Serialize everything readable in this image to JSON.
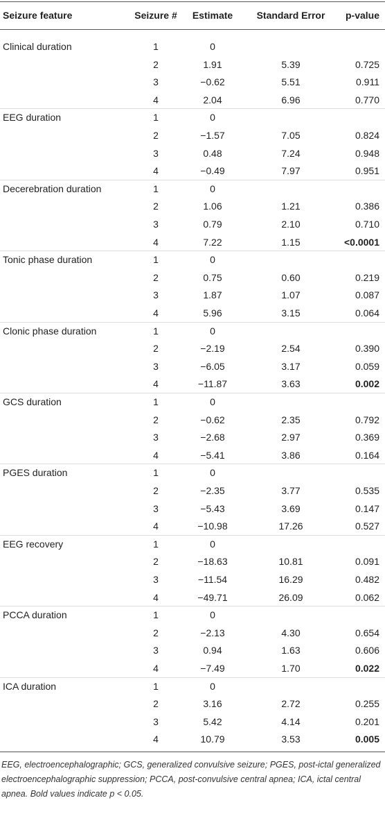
{
  "header": {
    "feature": "Seizure feature",
    "seizure": "Seizure #",
    "estimate": "Estimate",
    "se": "Standard Error",
    "p": "p-value"
  },
  "groups": [
    {
      "feature": "Clinical duration",
      "rows": [
        {
          "seizure": "1",
          "estimate": "0"
        },
        {
          "seizure": "2",
          "estimate": "1.91",
          "se": "5.39",
          "p": "0.725"
        },
        {
          "seizure": "3",
          "estimate": "−0.62",
          "se": "5.51",
          "p": "0.911"
        },
        {
          "seizure": "4",
          "estimate": "2.04",
          "se": "6.96",
          "p": "0.770"
        }
      ]
    },
    {
      "feature": "EEG duration",
      "rows": [
        {
          "seizure": "1",
          "estimate": "0"
        },
        {
          "seizure": "2",
          "estimate": "−1.57",
          "se": "7.05",
          "p": "0.824"
        },
        {
          "seizure": "3",
          "estimate": "0.48",
          "se": "7.24",
          "p": "0.948"
        },
        {
          "seizure": "4",
          "estimate": "−0.49",
          "se": "7.97",
          "p": "0.951"
        }
      ]
    },
    {
      "feature": "Decerebration duration",
      "rows": [
        {
          "seizure": "1",
          "estimate": "0"
        },
        {
          "seizure": "2",
          "estimate": "1.06",
          "se": "1.21",
          "p": "0.386"
        },
        {
          "seizure": "3",
          "estimate": "0.79",
          "se": "2.10",
          "p": "0.710"
        },
        {
          "seizure": "4",
          "estimate": "7.22",
          "se": "1.15",
          "p": "<0.0001",
          "bold": true
        }
      ]
    },
    {
      "feature": "Tonic phase duration",
      "rows": [
        {
          "seizure": "1",
          "estimate": "0"
        },
        {
          "seizure": "2",
          "estimate": "0.75",
          "se": "0.60",
          "p": "0.219"
        },
        {
          "seizure": "3",
          "estimate": "1.87",
          "se": "1.07",
          "p": "0.087"
        },
        {
          "seizure": "4",
          "estimate": "5.96",
          "se": "3.15",
          "p": "0.064"
        }
      ]
    },
    {
      "feature": "Clonic phase duration",
      "rows": [
        {
          "seizure": "1",
          "estimate": "0"
        },
        {
          "seizure": "2",
          "estimate": "−2.19",
          "se": "2.54",
          "p": "0.390"
        },
        {
          "seizure": "3",
          "estimate": "−6.05",
          "se": "3.17",
          "p": "0.059"
        },
        {
          "seizure": "4",
          "estimate": "−11.87",
          "se": "3.63",
          "p": "0.002",
          "bold": true
        }
      ]
    },
    {
      "feature": "GCS duration",
      "rows": [
        {
          "seizure": "1",
          "estimate": "0"
        },
        {
          "seizure": "2",
          "estimate": "−0.62",
          "se": "2.35",
          "p": "0.792"
        },
        {
          "seizure": "3",
          "estimate": "−2.68",
          "se": "2.97",
          "p": "0.369"
        },
        {
          "seizure": "4",
          "estimate": "−5.41",
          "se": "3.86",
          "p": "0.164"
        }
      ]
    },
    {
      "feature": "PGES duration",
      "rows": [
        {
          "seizure": "1",
          "estimate": "0"
        },
        {
          "seizure": "2",
          "estimate": "−2.35",
          "se": "3.77",
          "p": "0.535"
        },
        {
          "seizure": "3",
          "estimate": "−5.43",
          "se": "3.69",
          "p": "0.147"
        },
        {
          "seizure": "4",
          "estimate": "−10.98",
          "se": "17.26",
          "p": "0.527"
        }
      ]
    },
    {
      "feature": "EEG recovery",
      "rows": [
        {
          "seizure": "1",
          "estimate": "0"
        },
        {
          "seizure": "2",
          "estimate": "−18.63",
          "se": "10.81",
          "p": "0.091"
        },
        {
          "seizure": "3",
          "estimate": "−11.54",
          "se": "16.29",
          "p": "0.482"
        },
        {
          "seizure": "4",
          "estimate": "−49.71",
          "se": "26.09",
          "p": "0.062"
        }
      ]
    },
    {
      "feature": "PCCA duration",
      "rows": [
        {
          "seizure": "1",
          "estimate": "0"
        },
        {
          "seizure": "2",
          "estimate": "−2.13",
          "se": "4.30",
          "p": "0.654"
        },
        {
          "seizure": "3",
          "estimate": "0.94",
          "se": "1.63",
          "p": "0.606"
        },
        {
          "seizure": "4",
          "estimate": "−7.49",
          "se": "1.70",
          "p": "0.022",
          "bold": true
        }
      ]
    },
    {
      "feature": "ICA duration",
      "rows": [
        {
          "seizure": "1",
          "estimate": "0"
        },
        {
          "seizure": "2",
          "estimate": "3.16",
          "se": "2.72",
          "p": "0.255"
        },
        {
          "seizure": "3",
          "estimate": "5.42",
          "se": "4.14",
          "p": "0.201"
        },
        {
          "seizure": "4",
          "estimate": "10.79",
          "se": "3.53",
          "p": "0.005",
          "bold": true
        }
      ]
    }
  ],
  "footnote": "EEG, electroencephalographic; GCS, generalized convulsive seizure; PGES, post-ictal generalized electroencephalographic suppression; PCCA, post-convulsive central apnea; ICA, ictal central apnea. Bold values indicate p < 0.05."
}
